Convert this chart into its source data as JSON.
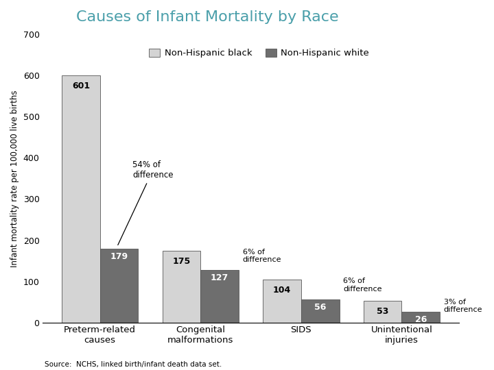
{
  "title": "Causes of Infant Mortality by Race",
  "title_color": "#4a9faa",
  "ylabel": "Infant mortality rate per 100,000 live births",
  "source_text": "Source:  NCHS, linked birth/infant death data set.",
  "categories": [
    "Preterm-related\ncauses",
    "Congenital\nmalformations",
    "SIDS",
    "Unintentional\ninjuries"
  ],
  "black_values": [
    601,
    175,
    104,
    53
  ],
  "white_values": [
    179,
    127,
    56,
    26
  ],
  "black_color": "#d4d4d4",
  "white_color": "#6e6e6e",
  "ylim": [
    0,
    700
  ],
  "yticks": [
    0,
    100,
    200,
    300,
    400,
    500,
    600,
    700
  ],
  "bar_width": 0.38,
  "legend_black_label": "Non-Hispanic black",
  "legend_white_label": "Non-Hispanic white",
  "diff_annotations": [
    {
      "text": "54% of\ndifference",
      "bar_idx": 0,
      "has_arrow": true
    },
    {
      "text": "6% of\ndifference",
      "bar_idx": 1,
      "has_arrow": false
    },
    {
      "text": "6% of\ndifference",
      "bar_idx": 2,
      "has_arrow": false
    },
    {
      "text": "3% of\ndifference",
      "bar_idx": 3,
      "has_arrow": false
    }
  ]
}
